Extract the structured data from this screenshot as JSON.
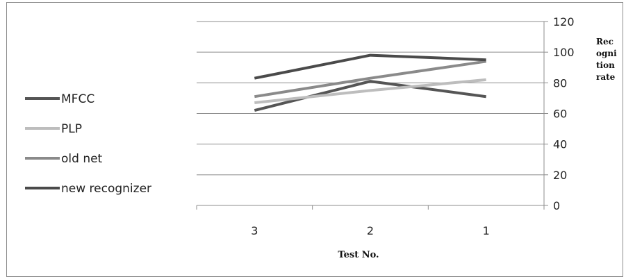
{
  "chart_data": {
    "type": "line",
    "categories": [
      "3",
      "2",
      "1"
    ],
    "series": [
      {
        "name": "MFCC",
        "values": [
          62,
          81,
          71
        ],
        "color": "#555555"
      },
      {
        "name": "PLP",
        "values": [
          67,
          75,
          82
        ],
        "color": "#bdbdbd"
      },
      {
        "name": "old net",
        "values": [
          71,
          83,
          94
        ],
        "color": "#8a8a8a"
      },
      {
        "name": "new recognizer",
        "values": [
          83,
          98,
          95
        ],
        "color": "#4a4a4a"
      }
    ],
    "xlabel": "Test No.",
    "ylabel_lines": [
      "Rec",
      "ogni",
      "tion",
      "rate"
    ],
    "ylim": [
      0,
      120
    ],
    "yticks": [
      0,
      20,
      40,
      60,
      80,
      100,
      120
    ],
    "y_axis_side": "right",
    "grid": true,
    "legend_position": "left"
  }
}
